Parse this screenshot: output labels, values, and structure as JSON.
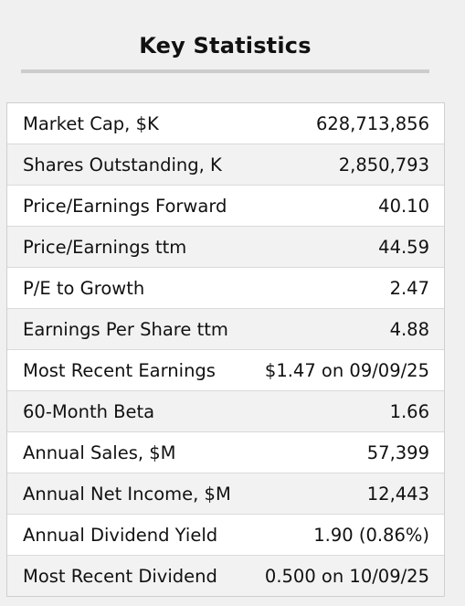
{
  "header": {
    "title": "Key Statistics"
  },
  "stats": [
    {
      "label": "Market Cap, $K",
      "value": "628,713,856"
    },
    {
      "label": "Shares Outstanding, K",
      "value": "2,850,793"
    },
    {
      "label": "Price/Earnings Forward",
      "value": "40.10"
    },
    {
      "label": "Price/Earnings ttm",
      "value": "44.59"
    },
    {
      "label": "P/E to Growth",
      "value": "2.47"
    },
    {
      "label": "Earnings Per Share ttm",
      "value": "4.88"
    },
    {
      "label": "Most Recent Earnings",
      "value": "$1.47 on 09/09/25"
    },
    {
      "label": "60-Month Beta",
      "value": "1.66"
    },
    {
      "label": "Annual Sales, $M",
      "value": "57,399"
    },
    {
      "label": "Annual Net Income, $M",
      "value": "12,443"
    },
    {
      "label": "Annual Dividend Yield",
      "value": "1.90 (0.86%)"
    },
    {
      "label": "Most Recent Dividend",
      "value": "0.500 on 10/09/25"
    }
  ]
}
